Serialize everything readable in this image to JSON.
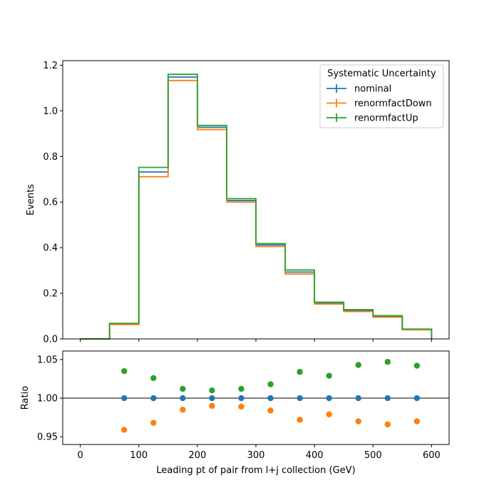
{
  "chart_data": [
    {
      "type": "histogram-step",
      "title": "",
      "xlabel": "",
      "ylabel": "Events",
      "xlim": [
        -30,
        630
      ],
      "ylim": [
        0,
        1.22
      ],
      "x_ticks": [
        "0",
        "100",
        "200",
        "300",
        "400",
        "500",
        "600"
      ],
      "x_tick_values": [
        0,
        100,
        200,
        300,
        400,
        500,
        600
      ],
      "y_ticks": [
        "0.0",
        "0.2",
        "0.4",
        "0.6",
        "0.8",
        "1.0",
        "1.2"
      ],
      "y_tick_values": [
        0,
        0.2,
        0.4,
        0.6,
        0.8,
        1.0,
        1.2
      ],
      "bin_edges": [
        0,
        50,
        100,
        150,
        200,
        250,
        300,
        350,
        400,
        450,
        500,
        550,
        600
      ],
      "legend": {
        "title": "Systematic Uncertainty",
        "placement": "top-right"
      },
      "series": [
        {
          "name": "nominal",
          "color": "#1f77b4",
          "values": [
            0.0,
            0.066,
            0.732,
            1.148,
            0.928,
            0.607,
            0.412,
            0.293,
            0.156,
            0.123,
            0.098,
            0.041
          ]
        },
        {
          "name": "renormfactDown",
          "color": "#ff7f0e",
          "values": [
            0.0,
            0.063,
            0.711,
            1.133,
            0.918,
            0.6,
            0.405,
            0.284,
            0.153,
            0.12,
            0.095,
            0.04
          ]
        },
        {
          "name": "renormfactUp",
          "color": "#2ca02c",
          "values": [
            0.0,
            0.068,
            0.752,
            1.16,
            0.936,
            0.615,
            0.418,
            0.302,
            0.161,
            0.128,
            0.102,
            0.043
          ]
        }
      ]
    },
    {
      "type": "scatter",
      "title": "",
      "xlabel": "Leading pt of pair from l+j collection (GeV)",
      "ylabel": "Ratio",
      "xlim": [
        -30,
        630
      ],
      "ylim": [
        0.94,
        1.061
      ],
      "x_ticks": [
        "0",
        "100",
        "200",
        "300",
        "400",
        "500",
        "600"
      ],
      "x_tick_values": [
        0,
        100,
        200,
        300,
        400,
        500,
        600
      ],
      "y_ticks": [
        "0.95",
        "1.00",
        "1.05"
      ],
      "y_tick_values": [
        0.95,
        1.0,
        1.05
      ],
      "reference_line": 1.0,
      "x": [
        75,
        125,
        175,
        225,
        275,
        325,
        375,
        425,
        475,
        525,
        575
      ],
      "series": [
        {
          "name": "nominal",
          "color": "#1f77b4",
          "values": [
            1.0,
            1.0,
            1.0,
            1.0,
            1.0,
            1.0,
            1.0,
            1.0,
            1.0,
            1.0,
            1.0
          ]
        },
        {
          "name": "renormfactDown",
          "color": "#ff7f0e",
          "values": [
            0.959,
            0.968,
            0.985,
            0.99,
            0.989,
            0.984,
            0.972,
            0.979,
            0.97,
            0.966,
            0.97
          ]
        },
        {
          "name": "renormfactUp",
          "color": "#2ca02c",
          "values": [
            1.035,
            1.026,
            1.012,
            1.01,
            1.012,
            1.018,
            1.034,
            1.029,
            1.043,
            1.047,
            1.042
          ]
        }
      ]
    }
  ]
}
